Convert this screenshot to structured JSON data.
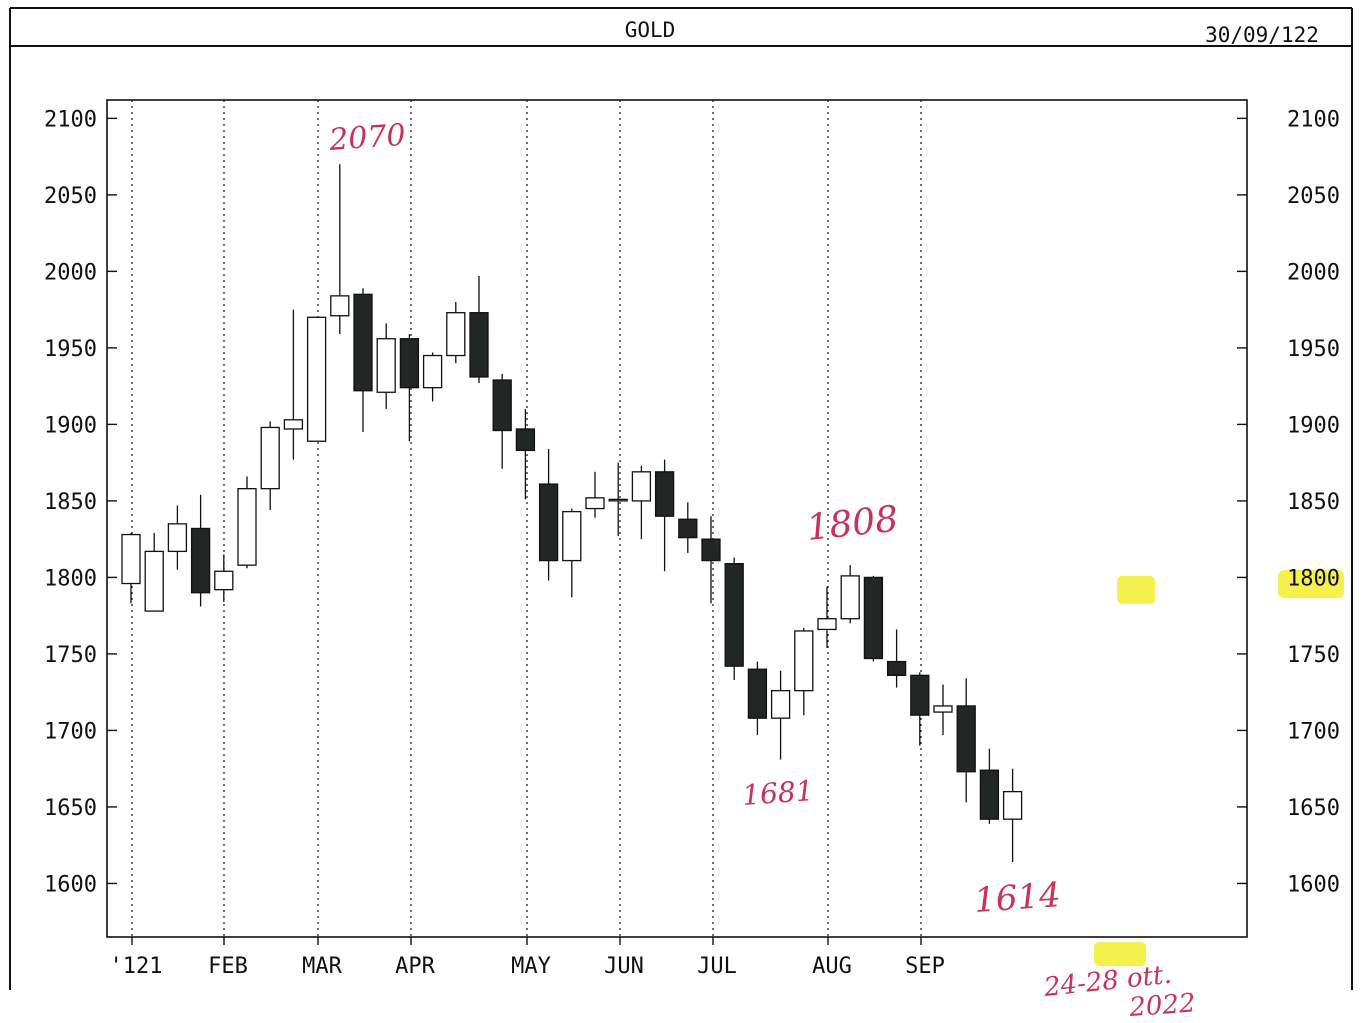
{
  "header": {
    "title": "GOLD",
    "date": "30/09/122"
  },
  "chart_data": {
    "type": "candlestick",
    "title": "GOLD",
    "ylim": [
      1565,
      2112
    ],
    "y_ticks": [
      1600,
      1650,
      1700,
      1750,
      1800,
      1850,
      1900,
      1950,
      2000,
      2050,
      2100
    ],
    "y_tick_labels": [
      "1600",
      "1650",
      "1700",
      "1750",
      "1800",
      "1850",
      "1900",
      "1950",
      "2000",
      "2050",
      "2100"
    ],
    "x_labels": [
      "'121",
      "FEB",
      "MAR",
      "APR",
      "MAY",
      "JUN",
      "JUL",
      "AUG",
      "SEP"
    ],
    "grid": "vertical dotted lines at month starts",
    "candles": [
      {
        "open": 1796,
        "high": 1829,
        "low": 1783,
        "close": 1828
      },
      {
        "open": 1778,
        "high": 1829,
        "low": 1778,
        "close": 1817
      },
      {
        "open": 1817,
        "high": 1847,
        "low": 1805,
        "close": 1835
      },
      {
        "open": 1832,
        "high": 1854,
        "low": 1781,
        "close": 1790
      },
      {
        "open": 1792,
        "high": 1815,
        "low": 1784,
        "close": 1804
      },
      {
        "open": 1808,
        "high": 1866,
        "low": 1806,
        "close": 1858
      },
      {
        "open": 1858,
        "high": 1902,
        "low": 1844,
        "close": 1898
      },
      {
        "open": 1897,
        "high": 1975,
        "low": 1877,
        "close": 1903
      },
      {
        "open": 1889,
        "high": 1970,
        "low": 1889,
        "close": 1970
      },
      {
        "open": 1971,
        "high": 2070,
        "low": 1959,
        "close": 1984
      },
      {
        "open": 1985,
        "high": 1989,
        "low": 1895,
        "close": 1922
      },
      {
        "open": 1921,
        "high": 1966,
        "low": 1910,
        "close": 1956
      },
      {
        "open": 1956,
        "high": 1959,
        "low": 1889,
        "close": 1924
      },
      {
        "open": 1924,
        "high": 1947,
        "low": 1915,
        "close": 1945
      },
      {
        "open": 1945,
        "high": 1980,
        "low": 1940,
        "close": 1973
      },
      {
        "open": 1973,
        "high": 1997,
        "low": 1927,
        "close": 1931
      },
      {
        "open": 1929,
        "high": 1933,
        "low": 1871,
        "close": 1896
      },
      {
        "open": 1897,
        "high": 1910,
        "low": 1851,
        "close": 1883
      },
      {
        "open": 1861,
        "high": 1884,
        "low": 1798,
        "close": 1811
      },
      {
        "open": 1811,
        "high": 1845,
        "low": 1787,
        "close": 1843
      },
      {
        "open": 1845,
        "high": 1869,
        "low": 1839,
        "close": 1852
      },
      {
        "open": 1851,
        "high": 1875,
        "low": 1827,
        "close": 1851
      },
      {
        "open": 1850,
        "high": 1873,
        "low": 1825,
        "close": 1869
      },
      {
        "open": 1869,
        "high": 1877,
        "low": 1804,
        "close": 1840
      },
      {
        "open": 1838,
        "high": 1849,
        "low": 1816,
        "close": 1826
      },
      {
        "open": 1825,
        "high": 1840,
        "low": 1783,
        "close": 1811
      },
      {
        "open": 1809,
        "high": 1813,
        "low": 1733,
        "close": 1742
      },
      {
        "open": 1740,
        "high": 1745,
        "low": 1697,
        "close": 1708
      },
      {
        "open": 1708,
        "high": 1739,
        "low": 1681,
        "close": 1726
      },
      {
        "open": 1726,
        "high": 1767,
        "low": 1710,
        "close": 1765
      },
      {
        "open": 1766,
        "high": 1794,
        "low": 1754,
        "close": 1773
      },
      {
        "open": 1773,
        "high": 1808,
        "low": 1770,
        "close": 1801
      },
      {
        "open": 1800,
        "high": 1801,
        "low": 1745,
        "close": 1747
      },
      {
        "open": 1745,
        "high": 1766,
        "low": 1728,
        "close": 1736
      },
      {
        "open": 1736,
        "high": 1738,
        "low": 1690,
        "close": 1710
      },
      {
        "open": 1712,
        "high": 1730,
        "low": 1697,
        "close": 1716
      },
      {
        "open": 1716,
        "high": 1734,
        "low": 1653,
        "close": 1673
      },
      {
        "open": 1674,
        "high": 1688,
        "low": 1639,
        "close": 1642
      },
      {
        "open": 1642,
        "high": 1675,
        "low": 1614,
        "close": 1660
      }
    ],
    "annotations": [
      "2070",
      "1808",
      "1681",
      "1614"
    ],
    "highlighted_y_label": "1800"
  },
  "handwritten_note": {
    "line1": "24-28 ott.",
    "line2": "2022"
  },
  "colors": {
    "ink": "#111111",
    "bear_fill": "#222624",
    "handwriting": "#c8325a",
    "highlighter": "#f2ee2e"
  }
}
